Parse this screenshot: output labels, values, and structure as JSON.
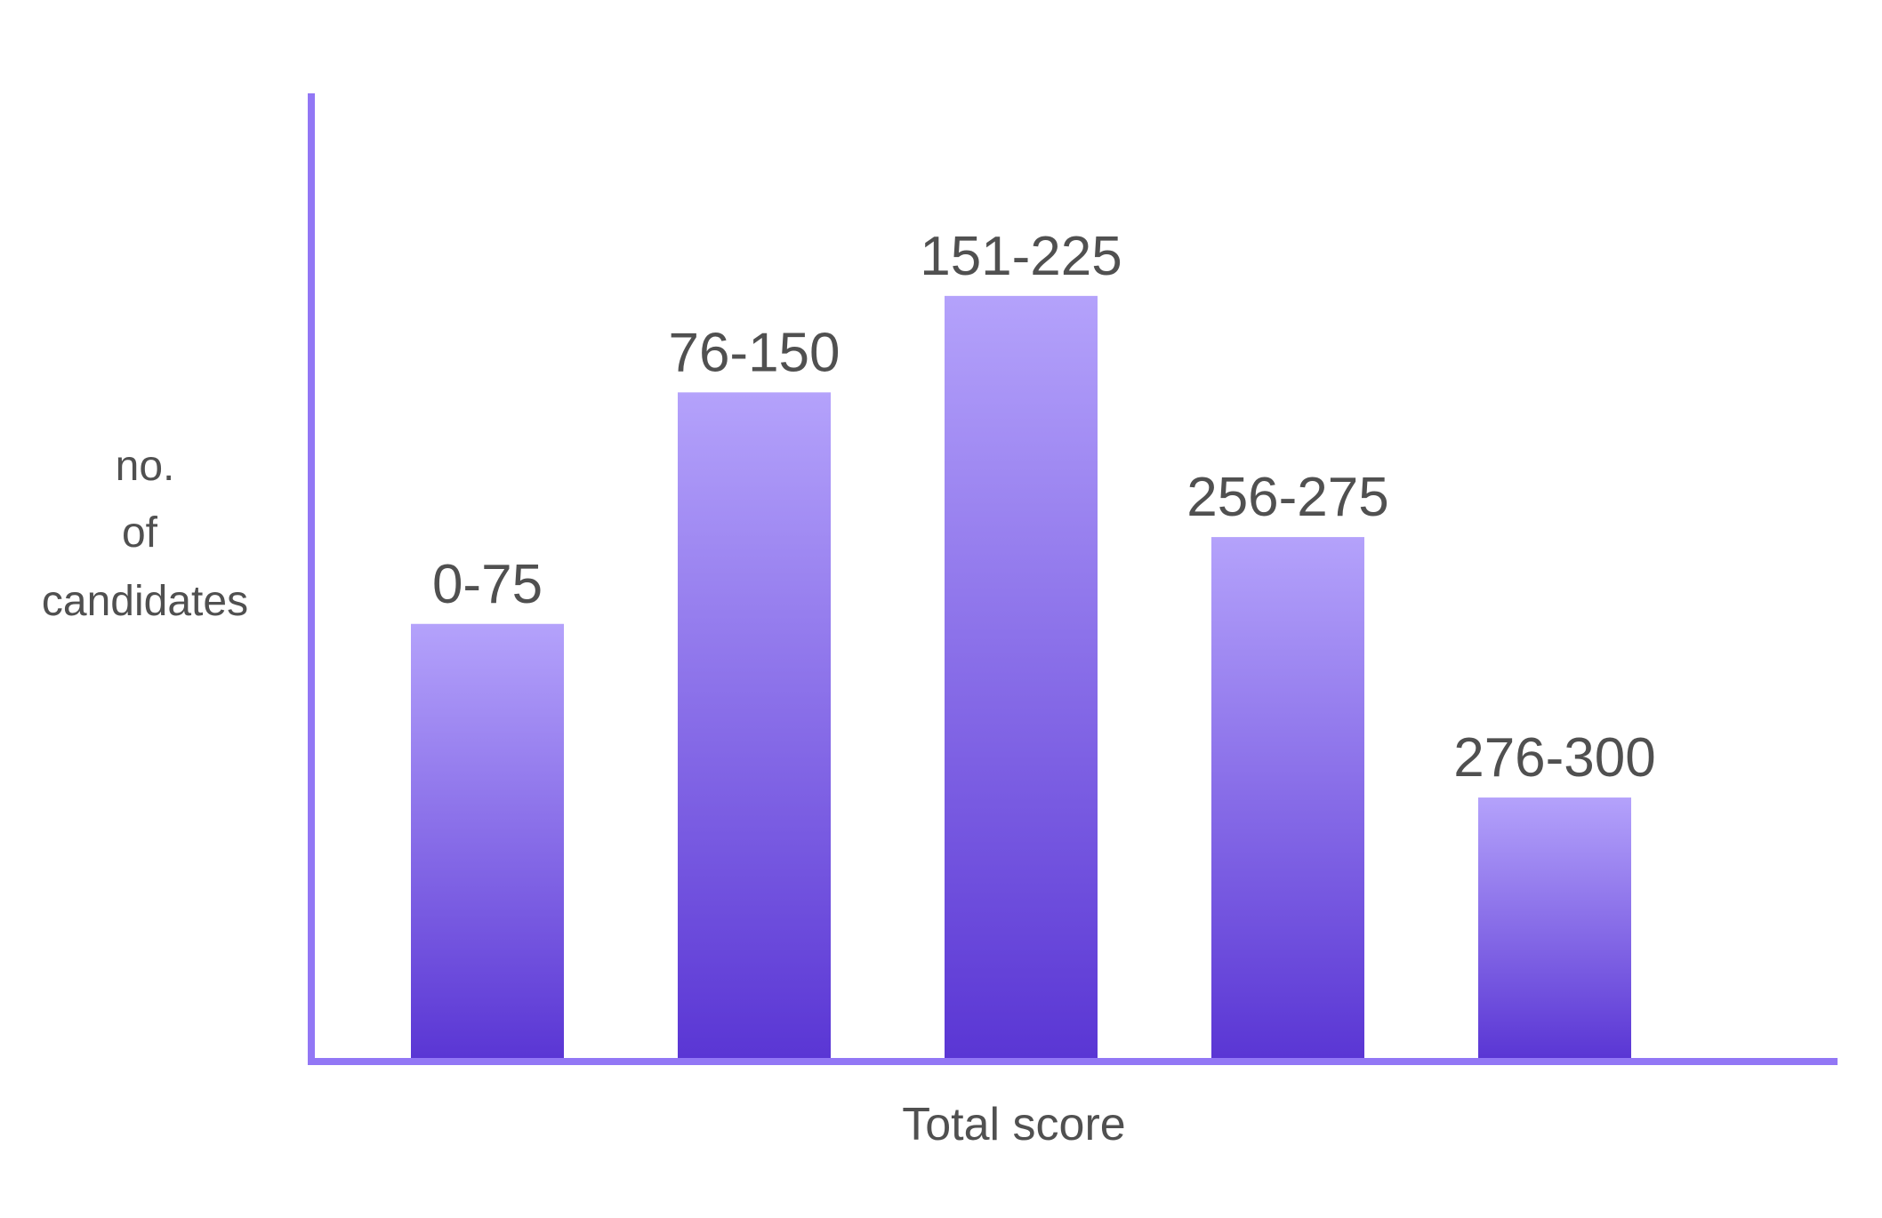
{
  "chart_data": {
    "type": "bar",
    "title": "",
    "xlabel": "Total score",
    "ylabel_lines": [
      "no.",
      "of",
      "candidates"
    ],
    "categories": [
      "0-75",
      "76-150",
      "151-225",
      "256-275",
      "276-300"
    ],
    "values": [
      4.5,
      6.9,
      7.9,
      5.4,
      2.7
    ],
    "ylim": [
      0,
      10
    ],
    "grid": false,
    "legend": "none",
    "colors": {
      "bar_top": "#b4a2fb",
      "bar_bottom": "#5a36d4",
      "axis": "#9277f5",
      "text": "#505050"
    }
  }
}
